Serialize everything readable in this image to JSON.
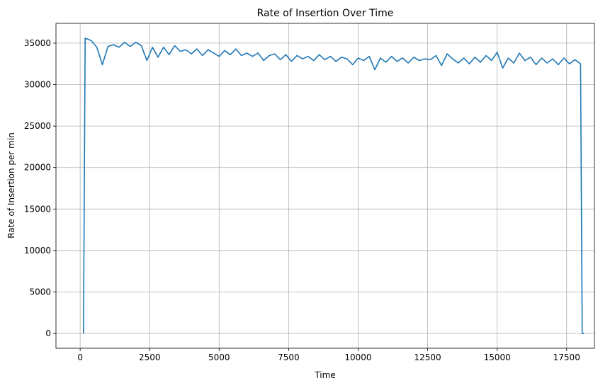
{
  "chart_data": {
    "type": "line",
    "title": "Rate of Insertion Over Time",
    "x_label": "Time",
    "y_label": "Rate of Insertion per min",
    "x": [
      120,
      180,
      400,
      600,
      800,
      1000,
      1200,
      1400,
      1600,
      1800,
      2000,
      2200,
      2400,
      2600,
      2800,
      3000,
      3200,
      3400,
      3600,
      3800,
      4000,
      4200,
      4400,
      4600,
      4800,
      5000,
      5200,
      5400,
      5600,
      5800,
      6000,
      6200,
      6400,
      6600,
      6800,
      7000,
      7200,
      7400,
      7600,
      7800,
      8000,
      8200,
      8400,
      8600,
      8800,
      9000,
      9200,
      9400,
      9600,
      9800,
      10000,
      10200,
      10400,
      10600,
      10800,
      11000,
      11200,
      11400,
      11600,
      11800,
      12000,
      12200,
      12400,
      12600,
      12800,
      13000,
      13200,
      13400,
      13600,
      13800,
      14000,
      14200,
      14400,
      14600,
      14800,
      15000,
      15200,
      15400,
      15600,
      15800,
      16000,
      16200,
      16400,
      16600,
      16800,
      17000,
      17200,
      17400,
      17600,
      17800,
      18000,
      18060,
      18120
    ],
    "values": [
      0,
      35600,
      35300,
      34500,
      32400,
      34600,
      34800,
      34500,
      35100,
      34600,
      35100,
      34700,
      32900,
      34500,
      33300,
      34500,
      33600,
      34700,
      34000,
      34200,
      33700,
      34300,
      33500,
      34200,
      33800,
      33400,
      34100,
      33600,
      34300,
      33500,
      33800,
      33400,
      33800,
      32900,
      33500,
      33700,
      33000,
      33600,
      32800,
      33500,
      33100,
      33400,
      32900,
      33600,
      33000,
      33400,
      32800,
      33300,
      33100,
      32400,
      33200,
      32900,
      33400,
      31800,
      33200,
      32700,
      33400,
      32800,
      33200,
      32600,
      33300,
      32900,
      33100,
      33000,
      33500,
      32300,
      33700,
      33100,
      32600,
      33200,
      32500,
      33300,
      32700,
      33500,
      32900,
      33900,
      32000,
      33200,
      32600,
      33800,
      32900,
      33300,
      32400,
      33200,
      32600,
      33100,
      32400,
      33200,
      32500,
      33000,
      32500,
      0,
      0
    ],
    "color": "#1f77b4",
    "xlim": [
      -870,
      18500
    ],
    "ylim": [
      -1780,
      37380
    ],
    "xticks": [
      0,
      2500,
      5000,
      7500,
      10000,
      12500,
      15000,
      17500
    ],
    "yticks": [
      0,
      5000,
      10000,
      15000,
      20000,
      25000,
      30000,
      35000
    ],
    "grid": true
  }
}
